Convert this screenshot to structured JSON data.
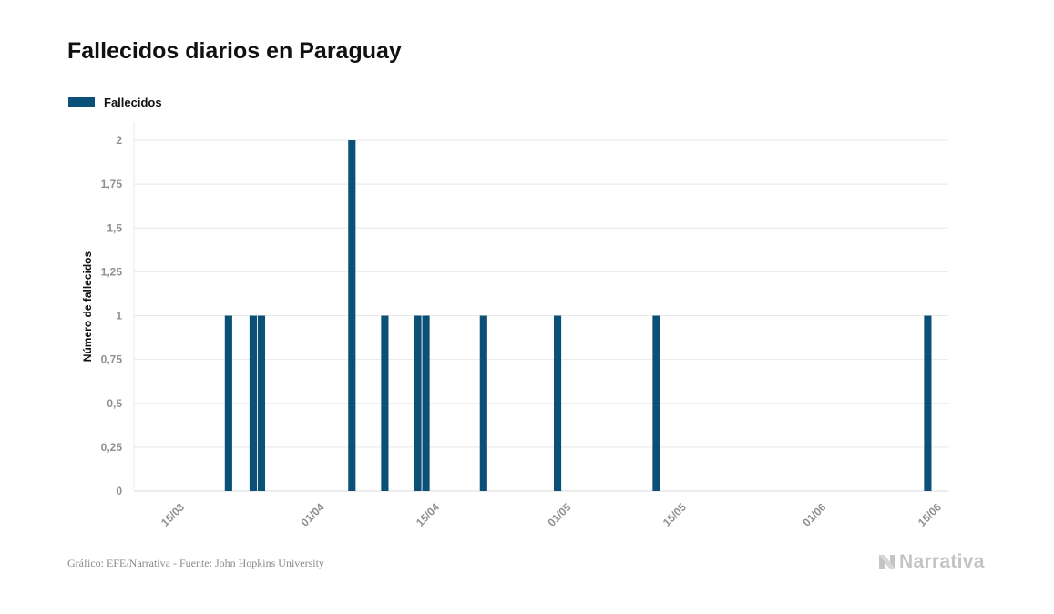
{
  "chart_data": {
    "type": "bar",
    "title": "Fallecidos diarios en Paraguay",
    "xlabel": "",
    "ylabel": "Número de fallecidos",
    "ylim": [
      0,
      2
    ],
    "y_ticks": [
      "0",
      "0,25",
      "0,5",
      "0,75",
      "1",
      "1,25",
      "1,5",
      "1,75",
      "2"
    ],
    "x_ticks": [
      "15/03",
      "01/04",
      "15/04",
      "01/05",
      "15/05",
      "01/06",
      "15/06"
    ],
    "x_range": [
      "2020-03-10",
      "2020-06-17"
    ],
    "grid": true,
    "legend_position": "top-left",
    "series": [
      {
        "name": "Fallecidos",
        "color": "#0b5077",
        "points": [
          {
            "date": "2020-03-21",
            "value": 1
          },
          {
            "date": "2020-03-24",
            "value": 1
          },
          {
            "date": "2020-03-25",
            "value": 1
          },
          {
            "date": "2020-04-05",
            "value": 2
          },
          {
            "date": "2020-04-09",
            "value": 1
          },
          {
            "date": "2020-04-13",
            "value": 1
          },
          {
            "date": "2020-04-14",
            "value": 1
          },
          {
            "date": "2020-04-21",
            "value": 1
          },
          {
            "date": "2020-04-30",
            "value": 1
          },
          {
            "date": "2020-05-12",
            "value": 1
          },
          {
            "date": "2020-06-14",
            "value": 1
          }
        ]
      }
    ]
  },
  "footer": {
    "source": "Gráfico: EFE/Narrativa - Fuente: John Hopkins University",
    "logo_text": "Narrativa"
  },
  "colors": {
    "bar": "#0b5077",
    "grid": "#e8e8e8",
    "tick_text": "#8f8f8f",
    "logo": "#c4c4c4"
  }
}
